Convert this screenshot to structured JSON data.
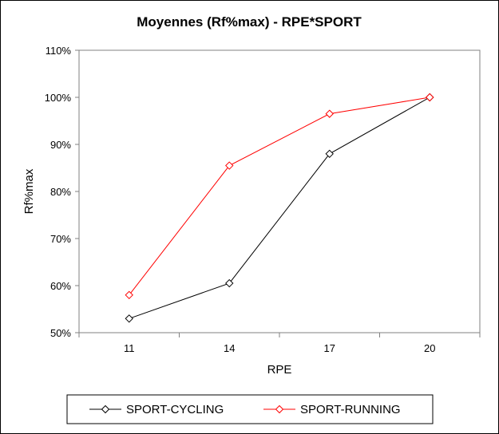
{
  "chart_data": {
    "type": "line",
    "title": "Moyennes (Rf%max) - RPE*SPORT",
    "xlabel": "RPE",
    "ylabel": "Rf%max",
    "categories": [
      "11",
      "14",
      "17",
      "20"
    ],
    "ylim": [
      50,
      110
    ],
    "yticks": [
      "50%",
      "60%",
      "70%",
      "80%",
      "90%",
      "100%",
      "110%"
    ],
    "ytick_values": [
      50,
      60,
      70,
      80,
      90,
      100,
      110
    ],
    "grid": false,
    "legend_position": "bottom",
    "series": [
      {
        "name": "SPORT-CYCLING",
        "color": "#000000",
        "marker": "diamond",
        "values": [
          53.0,
          60.5,
          88.0,
          100.0
        ]
      },
      {
        "name": "SPORT-RUNNING",
        "color": "#ff0000",
        "marker": "diamond",
        "values": [
          58.0,
          85.5,
          96.5,
          100.0
        ]
      }
    ]
  }
}
